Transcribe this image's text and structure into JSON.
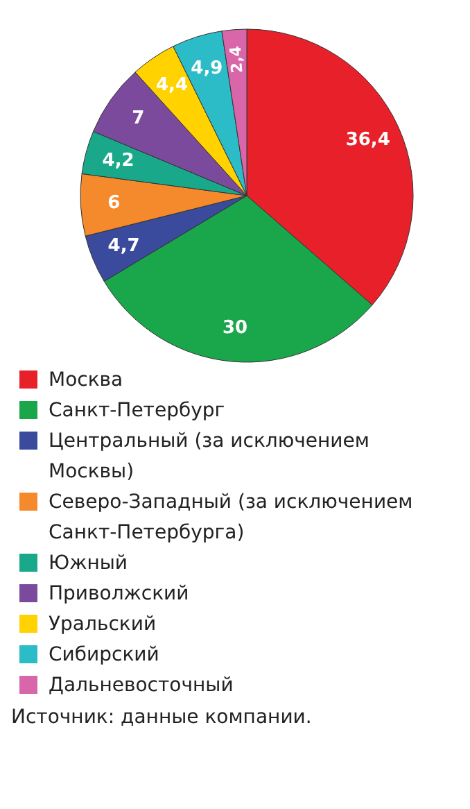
{
  "chart_data": {
    "type": "pie",
    "categories": [
      "Москва",
      "Санкт-Петербург",
      "Центральный (за исключением Москвы)",
      "Северо-Западный (за исключением Санкт-Петербурга)",
      "Южный",
      "Приволжский",
      "Уральский",
      "Сибирский",
      "Дальневосточный"
    ],
    "values": [
      36.4,
      30,
      4.7,
      6,
      4.2,
      7,
      4.4,
      4.9,
      2.4
    ],
    "value_labels": [
      "36,4",
      "30",
      "4,7",
      "6",
      "4,2",
      "7",
      "4,4",
      "4,9",
      "2,4"
    ],
    "colors": [
      "#e8202a",
      "#1aa64a",
      "#3a4a9c",
      "#f58a2c",
      "#1aa88a",
      "#7b4a9c",
      "#ffd200",
      "#2cbcc8",
      "#d866a8"
    ],
    "legend": "bottom",
    "annotations": [
      "Источник: данные компании."
    ]
  }
}
